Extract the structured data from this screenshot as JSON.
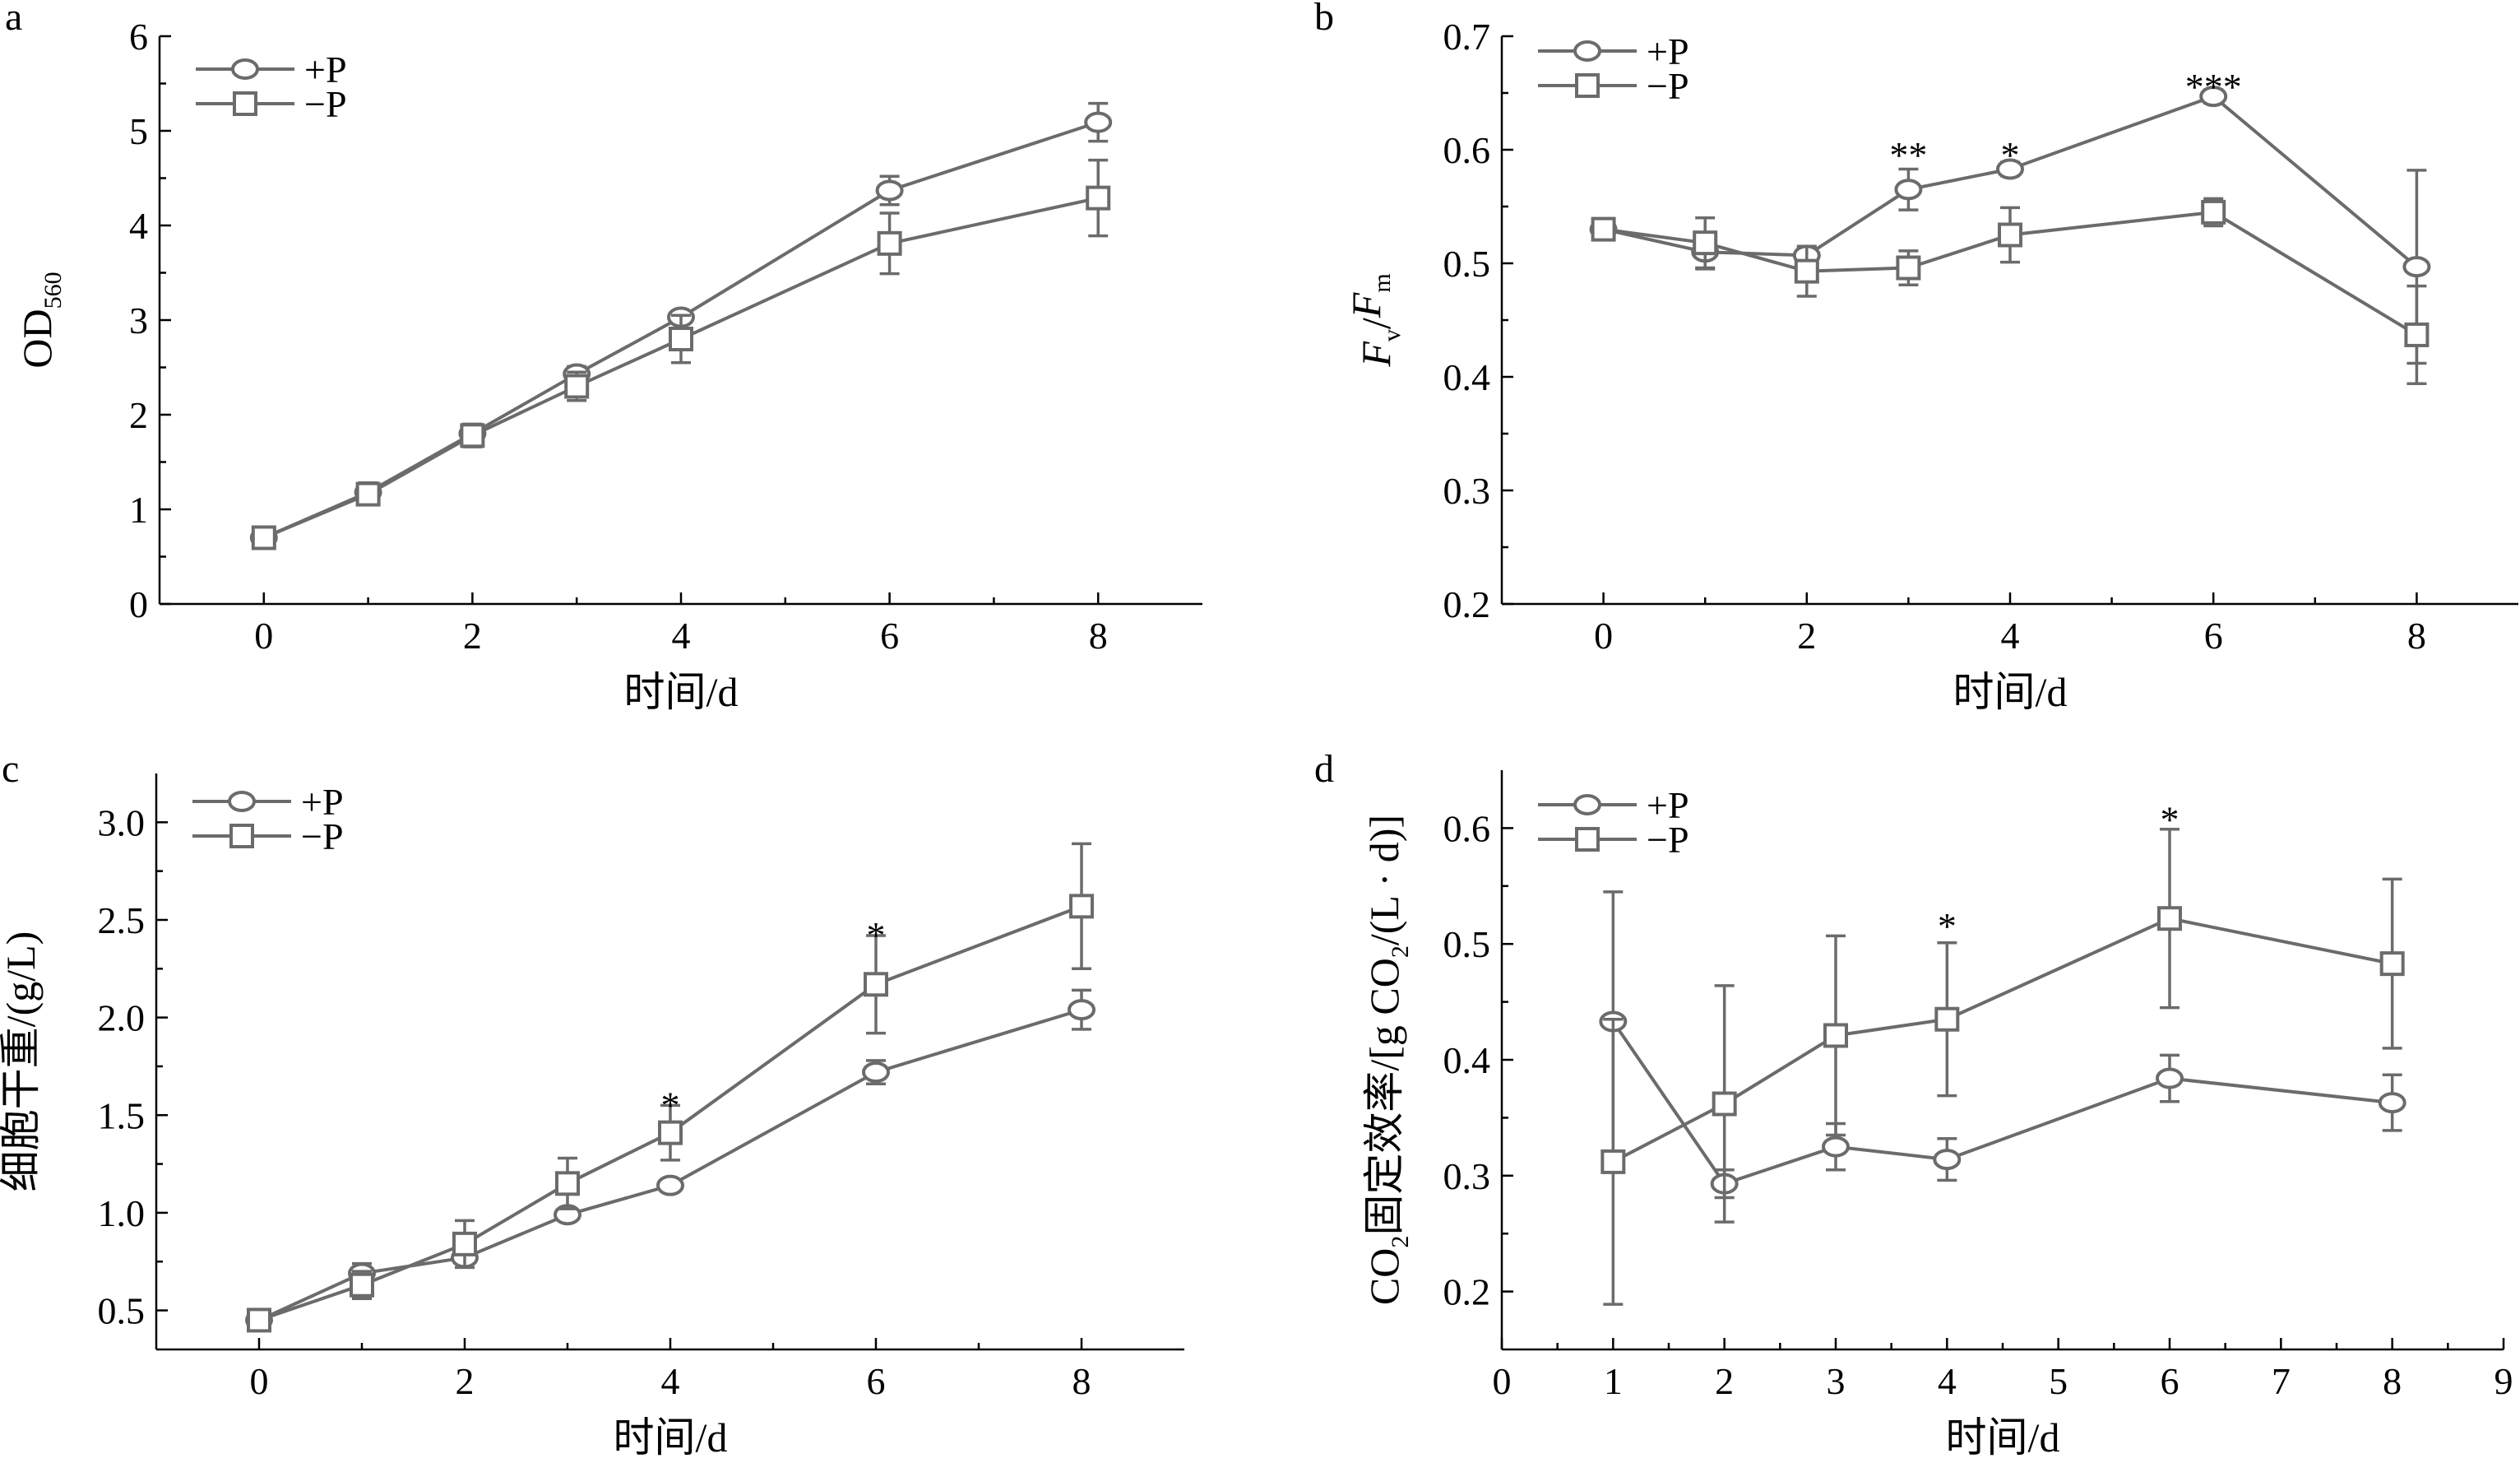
{
  "chart_data": [
    {
      "panel": "a",
      "type": "line",
      "xlabel": "时间/d",
      "ylabel_main": "OD",
      "ylabel_sub": "560",
      "xlim": [
        -1,
        9
      ],
      "ylim": [
        0,
        6
      ],
      "xticks": [
        0,
        2,
        4,
        6,
        8
      ],
      "yticks": [
        0,
        1,
        2,
        3,
        4,
        5,
        6
      ],
      "legend": "top-left",
      "series": [
        {
          "name": "+P",
          "marker": "circle",
          "x": [
            0,
            1,
            2,
            3,
            4,
            6,
            8
          ],
          "y": [
            0.7,
            1.18,
            1.8,
            2.43,
            3.03,
            4.37,
            5.09
          ],
          "err": [
            0.05,
            0.1,
            0.1,
            0.08,
            0.06,
            0.15,
            0.2
          ]
        },
        {
          "name": "−P",
          "marker": "square",
          "x": [
            0,
            1,
            2,
            3,
            4,
            6,
            8
          ],
          "y": [
            0.7,
            1.16,
            1.78,
            2.3,
            2.8,
            3.81,
            4.29
          ],
          "err": [
            0.05,
            0.1,
            0.12,
            0.15,
            0.25,
            0.32,
            0.4
          ]
        }
      ],
      "significance": []
    },
    {
      "panel": "b",
      "type": "line",
      "xlabel": "时间/d",
      "ylabel_parts": [
        "F",
        "v",
        "/",
        "F",
        "m"
      ],
      "xlim": [
        -1,
        9
      ],
      "ylim": [
        0.2,
        0.7
      ],
      "xticks": [
        0,
        2,
        4,
        6,
        8
      ],
      "yticks": [
        0.2,
        0.3,
        0.4,
        0.5,
        0.6,
        0.7
      ],
      "legend": "top-left",
      "series": [
        {
          "name": "+P",
          "marker": "circle",
          "x": [
            0,
            1,
            2,
            3,
            4,
            6,
            8
          ],
          "y": [
            0.53,
            0.51,
            0.507,
            0.565,
            0.583,
            0.647,
            0.497
          ],
          "err": [
            0.005,
            0.015,
            0.007,
            0.018,
            0.006,
            0.006,
            0.085
          ]
        },
        {
          "name": "−P",
          "marker": "square",
          "x": [
            0,
            1,
            2,
            3,
            4,
            6,
            8
          ],
          "y": [
            0.53,
            0.518,
            0.493,
            0.496,
            0.525,
            0.545,
            0.437
          ],
          "err": [
            0.005,
            0.022,
            0.022,
            0.015,
            0.024,
            0.012,
            0.043
          ]
        }
      ],
      "significance": [
        {
          "x": 3,
          "y": 0.6,
          "label": "**"
        },
        {
          "x": 4,
          "y": 0.6,
          "label": "*"
        },
        {
          "x": 6,
          "y": 0.66,
          "label": "***"
        }
      ]
    },
    {
      "panel": "c",
      "type": "line",
      "xlabel": "时间/d",
      "ylabel": "细胞干重/(g/L)",
      "xlim": [
        -1,
        9
      ],
      "ylim": [
        0.3,
        3.25
      ],
      "xticks": [
        0,
        2,
        4,
        6,
        8
      ],
      "yticks": [
        0.5,
        1.0,
        1.5,
        2.0,
        2.5,
        3.0
      ],
      "ytick_labels": [
        "0.5",
        "1.0",
        "1.5",
        "2.0",
        "2.5",
        "3.0"
      ],
      "legend": "top-left",
      "series": [
        {
          "name": "+P",
          "marker": "circle",
          "x": [
            0,
            1,
            2,
            3,
            4,
            6,
            8
          ],
          "y": [
            0.45,
            0.69,
            0.77,
            0.99,
            1.14,
            1.72,
            2.04
          ],
          "err": [
            0.02,
            0.05,
            0.03,
            0.03,
            0.02,
            0.06,
            0.1
          ]
        },
        {
          "name": "−P",
          "marker": "square",
          "x": [
            0,
            1,
            2,
            3,
            4,
            6,
            8
          ],
          "y": [
            0.45,
            0.63,
            0.84,
            1.15,
            1.41,
            2.17,
            2.57
          ],
          "err": [
            0.02,
            0.07,
            0.12,
            0.13,
            0.14,
            0.25,
            0.32
          ]
        }
      ],
      "significance": [
        {
          "x": 4,
          "y": 1.58,
          "label": "*"
        },
        {
          "x": 6,
          "y": 2.45,
          "label": "*"
        }
      ]
    },
    {
      "panel": "d",
      "type": "line",
      "xlabel": "时间/d",
      "ylabel_parts": [
        "CO",
        "2",
        "固定效率/[g CO",
        "2",
        "/(L · d)]"
      ],
      "xlim": [
        0,
        9
      ],
      "ylim": [
        0.15,
        0.65
      ],
      "xticks": [
        0,
        1,
        2,
        3,
        4,
        5,
        6,
        7,
        8,
        9
      ],
      "yticks": [
        0.2,
        0.3,
        0.4,
        0.5,
        0.6
      ],
      "legend": "top-left",
      "series": [
        {
          "name": "+P",
          "marker": "circle",
          "x": [
            1,
            2,
            3,
            4,
            6,
            8
          ],
          "y": [
            0.433,
            0.293,
            0.325,
            0.314,
            0.384,
            0.363
          ],
          "err": [
            0.112,
            0.012,
            0.02,
            0.018,
            0.02,
            0.024
          ]
        },
        {
          "name": "−P",
          "marker": "square",
          "x": [
            1,
            2,
            3,
            4,
            6,
            8
          ],
          "y": [
            0.312,
            0.362,
            0.421,
            0.435,
            0.522,
            0.483
          ],
          "err": [
            0.123,
            0.102,
            0.086,
            0.066,
            0.077,
            0.073
          ]
        }
      ],
      "significance": [
        {
          "x": 4,
          "y": 0.52,
          "label": "*"
        },
        {
          "x": 6,
          "y": 0.612,
          "label": "*"
        }
      ]
    }
  ]
}
